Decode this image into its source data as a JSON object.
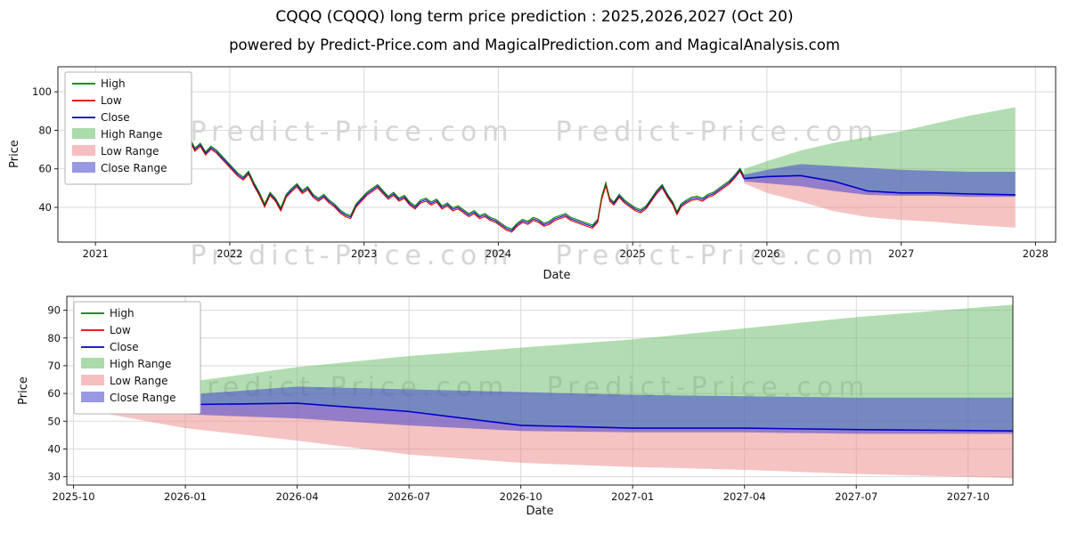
{
  "header": {
    "title": "CQQQ (CQQQ) long term price prediction : 2025,2026,2027 (Oct 20)",
    "subtitle": "powered by Predict-Price.com and MagicalPrediction.com and MagicalAnalysis.com"
  },
  "watermark": "Predict-Price.com",
  "colors": {
    "high": "#008000",
    "low": "#e00000",
    "close": "#0000cc",
    "high_range": "#66bb66",
    "low_range": "#ee8888",
    "close_range": "#4444cc"
  },
  "chart_data": [
    {
      "type": "line",
      "name": "top-chart",
      "xlabel": "Date",
      "ylabel": "Price",
      "xlim": [
        2020.72,
        2028.15
      ],
      "ylim": [
        22,
        113
      ],
      "xticks": [
        {
          "v": 2021,
          "label": "2021"
        },
        {
          "v": 2022,
          "label": "2022"
        },
        {
          "v": 2023,
          "label": "2023"
        },
        {
          "v": 2024,
          "label": "2024"
        },
        {
          "v": 2025,
          "label": "2025"
        },
        {
          "v": 2026,
          "label": "2026"
        },
        {
          "v": 2027,
          "label": "2027"
        },
        {
          "v": 2028,
          "label": "2028"
        }
      ],
      "yticks": [
        40,
        60,
        80,
        100
      ],
      "legend": [
        {
          "label": "High",
          "type": "line",
          "color": "high"
        },
        {
          "label": "Low",
          "type": "line",
          "color": "low"
        },
        {
          "label": "Close",
          "type": "line",
          "color": "close"
        },
        {
          "label": "High Range",
          "type": "patch",
          "color": "high_range"
        },
        {
          "label": "Low Range",
          "type": "patch",
          "color": "low_range"
        },
        {
          "label": "Close Range",
          "type": "patch",
          "color": "close_range"
        }
      ],
      "hist": {
        "spread": 0.8,
        "points": [
          [
            2020.78,
            104
          ],
          [
            2020.8,
            107
          ],
          [
            2020.83,
            100
          ],
          [
            2020.86,
            97
          ],
          [
            2020.9,
            93
          ],
          [
            2020.94,
            97
          ],
          [
            2020.98,
            90
          ],
          [
            2021.02,
            86
          ],
          [
            2021.06,
            83
          ],
          [
            2021.1,
            88
          ],
          [
            2021.14,
            84
          ],
          [
            2021.18,
            80
          ],
          [
            2021.22,
            83
          ],
          [
            2021.26,
            78
          ],
          [
            2021.3,
            80
          ],
          [
            2021.34,
            76
          ],
          [
            2021.38,
            78
          ],
          [
            2021.42,
            74
          ],
          [
            2021.46,
            72
          ],
          [
            2021.5,
            74.5
          ],
          [
            2021.54,
            71
          ],
          [
            2021.58,
            64
          ],
          [
            2021.62,
            68
          ],
          [
            2021.66,
            72
          ],
          [
            2021.7,
            75.5
          ],
          [
            2021.74,
            70
          ],
          [
            2021.78,
            72.5
          ],
          [
            2021.82,
            68
          ],
          [
            2021.86,
            71
          ],
          [
            2021.9,
            69
          ],
          [
            2021.94,
            66
          ],
          [
            2021.98,
            63
          ],
          [
            2022.02,
            60
          ],
          [
            2022.06,
            57
          ],
          [
            2022.1,
            55
          ],
          [
            2022.14,
            58
          ],
          [
            2022.18,
            52
          ],
          [
            2022.22,
            47
          ],
          [
            2022.26,
            41
          ],
          [
            2022.3,
            47
          ],
          [
            2022.34,
            44
          ],
          [
            2022.38,
            39
          ],
          [
            2022.42,
            46
          ],
          [
            2022.46,
            49
          ],
          [
            2022.5,
            51.5
          ],
          [
            2022.54,
            48
          ],
          [
            2022.58,
            50
          ],
          [
            2022.62,
            46
          ],
          [
            2022.66,
            44
          ],
          [
            2022.7,
            46
          ],
          [
            2022.74,
            43
          ],
          [
            2022.78,
            41
          ],
          [
            2022.82,
            38
          ],
          [
            2022.86,
            36
          ],
          [
            2022.9,
            35
          ],
          [
            2022.94,
            41
          ],
          [
            2022.98,
            44
          ],
          [
            2023.02,
            47
          ],
          [
            2023.06,
            49
          ],
          [
            2023.1,
            51
          ],
          [
            2023.14,
            48
          ],
          [
            2023.18,
            45
          ],
          [
            2023.22,
            47
          ],
          [
            2023.26,
            44
          ],
          [
            2023.3,
            45.5
          ],
          [
            2023.34,
            42
          ],
          [
            2023.38,
            40
          ],
          [
            2023.42,
            43
          ],
          [
            2023.46,
            44
          ],
          [
            2023.5,
            42
          ],
          [
            2023.54,
            43.5
          ],
          [
            2023.58,
            40
          ],
          [
            2023.62,
            41.5
          ],
          [
            2023.66,
            39
          ],
          [
            2023.7,
            40
          ],
          [
            2023.74,
            38
          ],
          [
            2023.78,
            36
          ],
          [
            2023.82,
            37.5
          ],
          [
            2023.86,
            35
          ],
          [
            2023.9,
            36
          ],
          [
            2023.94,
            34
          ],
          [
            2023.98,
            33
          ],
          [
            2024.02,
            31
          ],
          [
            2024.06,
            29
          ],
          [
            2024.1,
            28
          ],
          [
            2024.14,
            31
          ],
          [
            2024.18,
            33
          ],
          [
            2024.22,
            32
          ],
          [
            2024.26,
            34
          ],
          [
            2024.3,
            33
          ],
          [
            2024.34,
            31
          ],
          [
            2024.38,
            32
          ],
          [
            2024.42,
            34
          ],
          [
            2024.46,
            35
          ],
          [
            2024.5,
            36
          ],
          [
            2024.54,
            34
          ],
          [
            2024.58,
            33
          ],
          [
            2024.62,
            32
          ],
          [
            2024.66,
            31
          ],
          [
            2024.7,
            30
          ],
          [
            2024.74,
            33
          ],
          [
            2024.77,
            45
          ],
          [
            2024.8,
            52
          ],
          [
            2024.83,
            44
          ],
          [
            2024.86,
            42
          ],
          [
            2024.9,
            46
          ],
          [
            2024.94,
            43
          ],
          [
            2024.98,
            41
          ],
          [
            2025.02,
            39
          ],
          [
            2025.06,
            38
          ],
          [
            2025.1,
            40
          ],
          [
            2025.14,
            44
          ],
          [
            2025.18,
            48
          ],
          [
            2025.22,
            51
          ],
          [
            2025.26,
            46
          ],
          [
            2025.3,
            42
          ],
          [
            2025.33,
            37
          ],
          [
            2025.36,
            41
          ],
          [
            2025.4,
            43
          ],
          [
            2025.44,
            44.5
          ],
          [
            2025.48,
            45
          ],
          [
            2025.52,
            44
          ],
          [
            2025.56,
            46
          ],
          [
            2025.6,
            47
          ],
          [
            2025.64,
            49
          ],
          [
            2025.68,
            51
          ],
          [
            2025.72,
            53
          ],
          [
            2025.76,
            56
          ],
          [
            2025.8,
            59.5
          ],
          [
            2025.83,
            55.5
          ]
        ]
      },
      "pred": {
        "x": [
          2025.83,
          2026.0,
          2026.25,
          2026.5,
          2026.75,
          2027.0,
          2027.25,
          2027.5,
          2027.85
        ],
        "high": [
          60,
          64,
          69.5,
          73.5,
          76.5,
          79.5,
          83.5,
          87.5,
          92
        ],
        "close_top": [
          57,
          59.5,
          62.5,
          61.5,
          60.5,
          59.5,
          59,
          58.5,
          58.5
        ],
        "close": [
          55,
          56,
          56.5,
          53.5,
          48.5,
          47.5,
          47.5,
          47,
          46.5
        ],
        "close_bot": [
          53.5,
          52.5,
          51,
          48.5,
          46.5,
          46,
          46,
          45.5,
          45.5
        ],
        "low": [
          52.5,
          47.5,
          43,
          38,
          35,
          33.5,
          32.5,
          31,
          29.5
        ]
      }
    },
    {
      "type": "line",
      "name": "bottom-chart",
      "xlabel": "Date",
      "ylabel": "Price",
      "xlim": [
        2025.735,
        2027.85
      ],
      "ylim": [
        27,
        95
      ],
      "xticks": [
        {
          "v": 2025.75,
          "label": "2025-10"
        },
        {
          "v": 2026.0,
          "label": "2026-01"
        },
        {
          "v": 2026.25,
          "label": "2026-04"
        },
        {
          "v": 2026.5,
          "label": "2026-07"
        },
        {
          "v": 2026.75,
          "label": "2026-10"
        },
        {
          "v": 2027.0,
          "label": "2027-01"
        },
        {
          "v": 2027.25,
          "label": "2027-04"
        },
        {
          "v": 2027.5,
          "label": "2027-07"
        },
        {
          "v": 2027.75,
          "label": "2027-10"
        }
      ],
      "yticks": [
        30,
        40,
        50,
        60,
        70,
        80,
        90
      ],
      "legend": [
        {
          "label": "High",
          "type": "line",
          "color": "high"
        },
        {
          "label": "Low",
          "type": "line",
          "color": "low"
        },
        {
          "label": "Close",
          "type": "line",
          "color": "close"
        },
        {
          "label": "High Range",
          "type": "patch",
          "color": "high_range"
        },
        {
          "label": "Low Range",
          "type": "patch",
          "color": "low_range"
        },
        {
          "label": "Close Range",
          "type": "patch",
          "color": "close_range"
        }
      ],
      "pred": {
        "x": [
          2025.83,
          2026.0,
          2026.25,
          2026.5,
          2026.75,
          2027.0,
          2027.25,
          2027.5,
          2027.85
        ],
        "high": [
          60,
          64,
          69.5,
          73.5,
          76.5,
          79.5,
          83.5,
          87.5,
          92
        ],
        "close_top": [
          57,
          59.5,
          62.5,
          61.5,
          60.5,
          59.5,
          59,
          58.5,
          58.5
        ],
        "close": [
          55,
          56,
          56.5,
          53.5,
          48.5,
          47.5,
          47.5,
          47,
          46.5
        ],
        "close_bot": [
          53.5,
          52.5,
          51,
          48.5,
          46.5,
          46,
          46,
          45.5,
          45.5
        ],
        "low": [
          52.5,
          47.5,
          43,
          38,
          35,
          33.5,
          32.5,
          31,
          29.5
        ]
      }
    }
  ]
}
